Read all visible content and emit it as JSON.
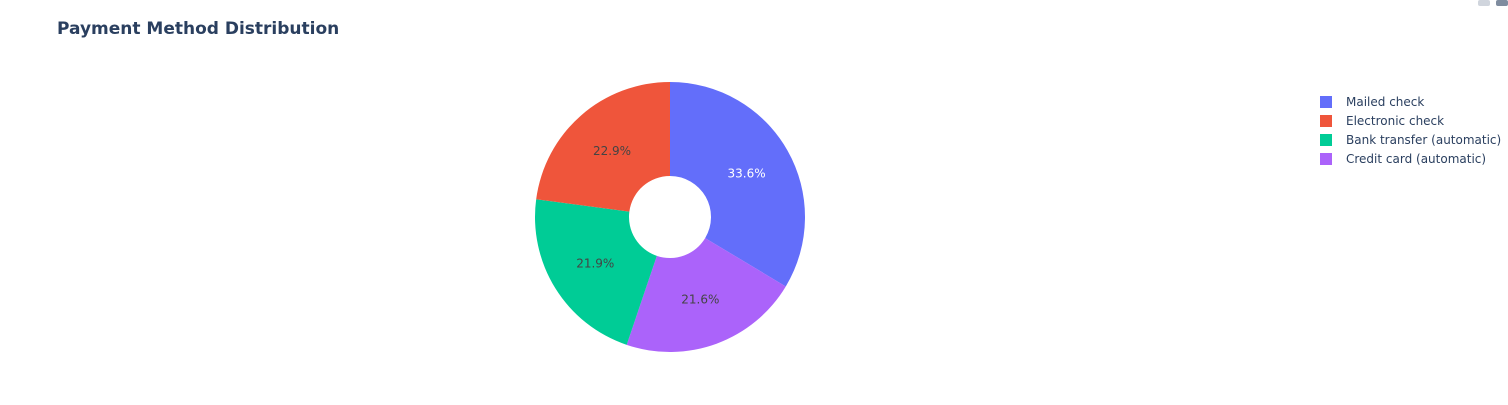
{
  "chart_data": {
    "type": "pie",
    "hole": true,
    "title": "Payment Method Distribution",
    "labels": [
      "Mailed check",
      "Electronic check",
      "Bank transfer (automatic)",
      "Credit card (automatic)"
    ],
    "values": [
      33.6,
      22.9,
      21.9,
      21.6
    ],
    "slice_labels": [
      "33.6%",
      "22.9%",
      "21.9%",
      "21.6%"
    ],
    "colors": [
      "#636efa",
      "#ef553b",
      "#00cc96",
      "#ab63fa"
    ],
    "label_colors": [
      "#ffffff",
      "#444444",
      "#444444",
      "#444444"
    ],
    "slice_order": [
      0,
      3,
      2,
      1
    ],
    "legend": {
      "position": "top-right",
      "entries": [
        "Mailed check",
        "Electronic check",
        "Bank transfer (automatic)",
        "Credit card (automatic)"
      ]
    }
  },
  "modebar": {
    "icons": [
      "camera-icon",
      "plotly-logo-icon"
    ]
  }
}
